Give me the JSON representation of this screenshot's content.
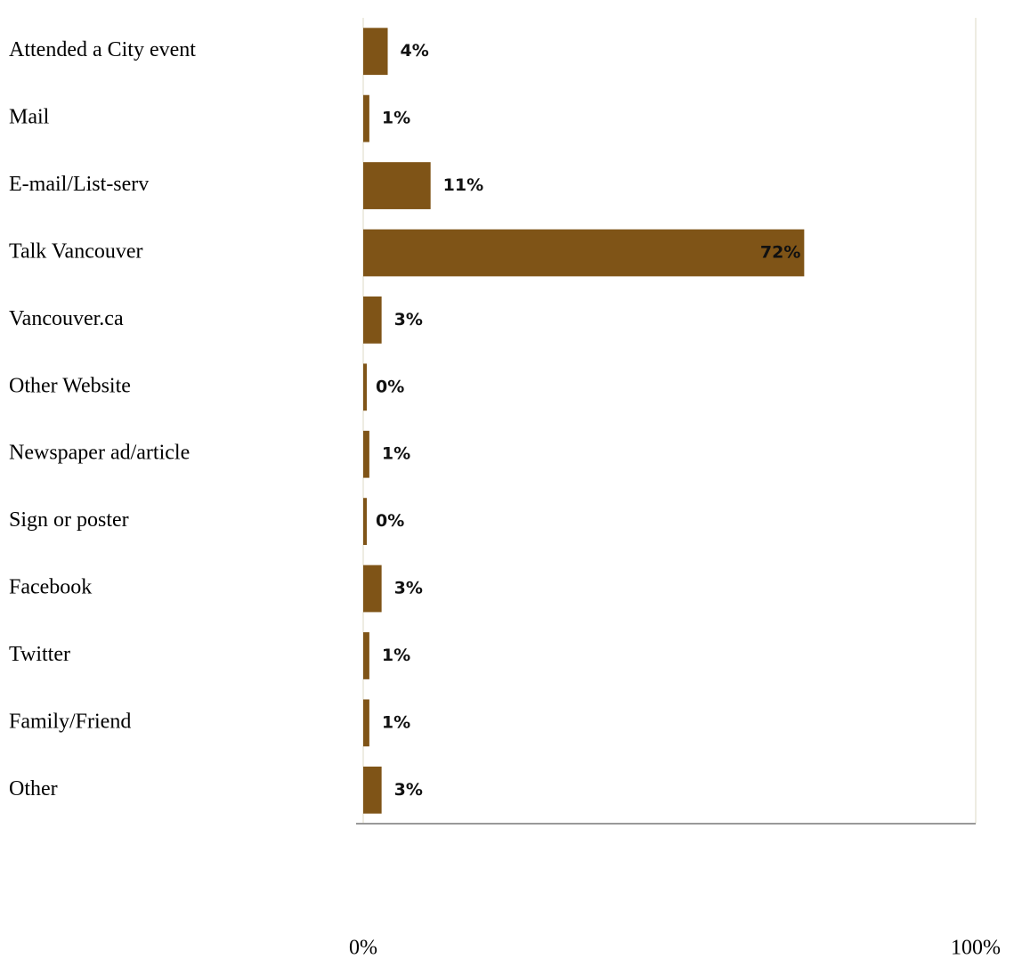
{
  "chart_data": {
    "type": "hbar",
    "categories": [
      "Attended a City event",
      "Mail",
      "E-mail/List-serv",
      "Talk Vancouver",
      "Vancouver.ca",
      "Other Website",
      "Newspaper ad/article",
      "Sign or poster",
      "Facebook",
      "Twitter",
      "Family/Friend",
      "Other"
    ],
    "values": [
      4,
      1,
      11,
      72,
      3,
      0,
      1,
      0,
      3,
      1,
      1,
      3
    ],
    "value_labels": [
      "4%",
      "1%",
      "11%",
      "72%",
      "3%",
      "0%",
      "1%",
      "0%",
      "3%",
      "1%",
      "1%",
      "3%"
    ],
    "color": "#7f5417",
    "xlim": [
      0,
      100
    ],
    "xticks": [
      {
        "value": 0,
        "label": "0%"
      },
      {
        "value": 100,
        "label": "100%"
      }
    ],
    "grid": true
  }
}
